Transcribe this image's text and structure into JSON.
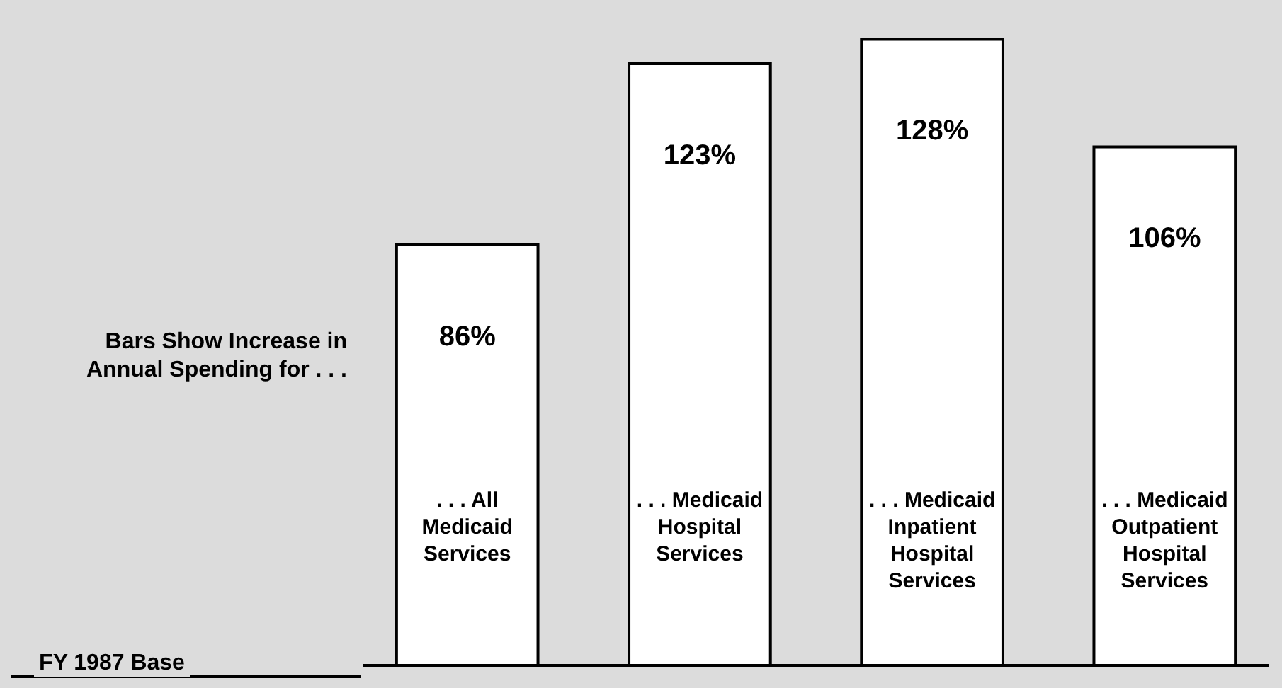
{
  "chart_data": {
    "type": "bar",
    "categories": [
      ". . . All Medicaid Services",
      ". . . Medicaid Hospital Services",
      ". . . Medicaid Inpatient Hospital Services",
      ". . . Medicaid Outpatient Hospital Services"
    ],
    "values": [
      86,
      123,
      128,
      106
    ],
    "value_labels": [
      "86%",
      "123%",
      "128%",
      "106%"
    ],
    "color": "#ffffff",
    "annotations": [
      "Bars Show Increase in Annual Spending for . . ."
    ],
    "ref_lines": [
      {
        "axis": "y",
        "value": 0,
        "label": "FY 1987 Base"
      }
    ]
  }
}
